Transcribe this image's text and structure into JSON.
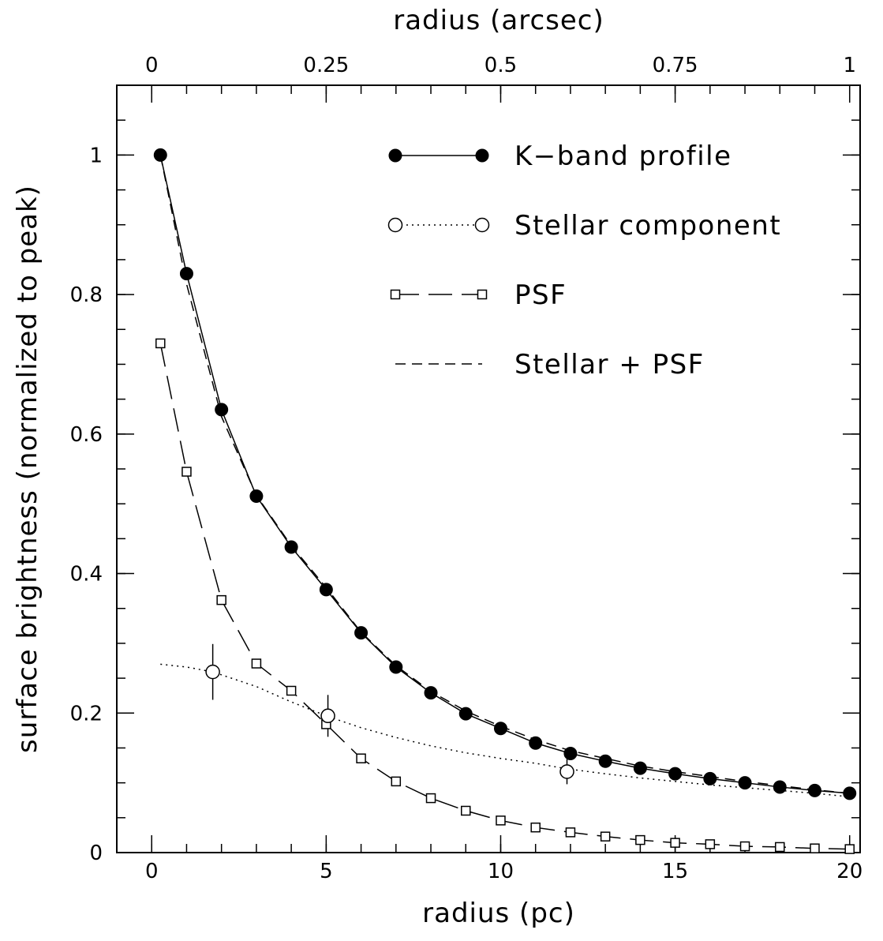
{
  "chart_data": {
    "type": "line",
    "xlabel": "radius (pc)",
    "x2label": "radius (arcsec)",
    "ylabel": "surface brightness (normalized to peak)",
    "xlim": [
      -1,
      20.3
    ],
    "ylim": [
      0,
      1.1
    ],
    "x2lim": [
      -0.05,
      1.015
    ],
    "x_ticks": [
      0,
      5,
      10,
      15,
      20
    ],
    "x_tick_labels": [
      "0",
      "5",
      "10",
      "15",
      "20"
    ],
    "x2_ticks": [
      0,
      0.25,
      0.5,
      0.75,
      1
    ],
    "x2_tick_labels": [
      "0",
      "0.25",
      "0.5",
      "0.75",
      "1"
    ],
    "y_ticks": [
      0,
      0.2,
      0.4,
      0.6,
      0.8,
      1
    ],
    "y_tick_labels": [
      "0",
      "0.2",
      "0.4",
      "0.6",
      "0.8",
      "1"
    ],
    "legend_position": "top-right",
    "series": [
      {
        "name": "K−band profile",
        "style": "solid",
        "marker": "filled-circle",
        "x": [
          0.25,
          1,
          2,
          3,
          4,
          5,
          6,
          7,
          8,
          9,
          10,
          11,
          12,
          13,
          14,
          15,
          16,
          17,
          18,
          19,
          20
        ],
        "y": [
          1.0,
          0.83,
          0.635,
          0.511,
          0.438,
          0.377,
          0.315,
          0.266,
          0.229,
          0.199,
          0.178,
          0.157,
          0.142,
          0.131,
          0.121,
          0.113,
          0.106,
          0.1,
          0.094,
          0.089,
          0.085
        ]
      },
      {
        "name": "Stellar component",
        "style": "dotted",
        "marker": "open-circle",
        "curve_x": [
          0.25,
          1,
          1.75,
          3,
          4,
          5,
          6,
          7,
          8,
          9,
          10,
          11,
          11.9,
          13,
          14,
          15,
          16,
          17,
          18,
          19,
          20
        ],
        "curve_y": [
          0.27,
          0.266,
          0.259,
          0.238,
          0.216,
          0.196,
          0.179,
          0.165,
          0.153,
          0.143,
          0.135,
          0.128,
          0.12,
          0.113,
          0.107,
          0.102,
          0.097,
          0.093,
          0.089,
          0.085,
          0.08
        ],
        "points_x": [
          1.75,
          5.05,
          11.9
        ],
        "points_y": [
          0.259,
          0.196,
          0.116
        ],
        "errors": [
          0.04,
          0.03,
          0.018
        ]
      },
      {
        "name": "PSF",
        "style": "long-dash",
        "marker": "open-square",
        "x": [
          0.25,
          1,
          2,
          3,
          4,
          5,
          6,
          7,
          8,
          9,
          10,
          11,
          12,
          13,
          14,
          15,
          16,
          17,
          18,
          19,
          20
        ],
        "y": [
          0.73,
          0.546,
          0.362,
          0.271,
          0.232,
          0.184,
          0.135,
          0.102,
          0.078,
          0.06,
          0.046,
          0.036,
          0.029,
          0.023,
          0.018,
          0.014,
          0.012,
          0.009,
          0.008,
          0.006,
          0.005
        ]
      },
      {
        "name": "Stellar + PSF",
        "style": "short-dash",
        "marker": "none",
        "x": [
          0.25,
          1,
          2,
          3,
          4,
          5,
          6,
          7,
          8,
          9,
          10,
          11,
          12,
          13,
          14,
          15,
          16,
          17,
          18,
          19,
          20
        ],
        "y": [
          1.0,
          0.815,
          0.625,
          0.512,
          0.44,
          0.38,
          0.316,
          0.268,
          0.231,
          0.203,
          0.181,
          0.162,
          0.146,
          0.135,
          0.124,
          0.116,
          0.109,
          0.102,
          0.096,
          0.09,
          0.085
        ]
      }
    ]
  }
}
